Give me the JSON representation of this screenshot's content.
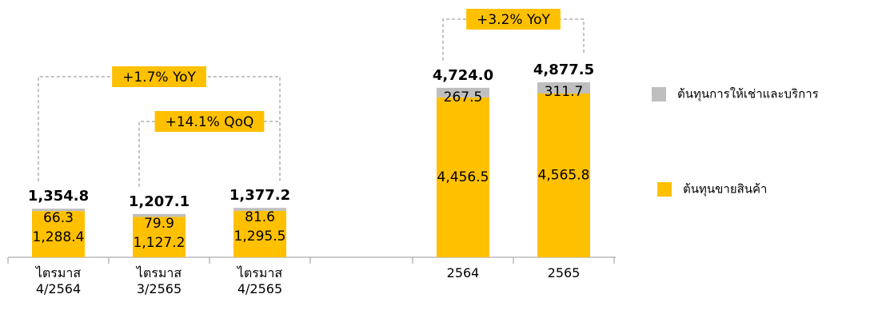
{
  "chart_data": {
    "type": "stacked_bar",
    "categories": [
      "ไตรมาส 4/2564",
      "ไตรมาส 3/2565",
      "ไตรมาส 4/2565",
      null,
      "2564",
      "2565"
    ],
    "series": [
      {
        "name": "ต้นทุนขายสินค้า",
        "color": "#ffc000",
        "values": [
          1288.4,
          1127.2,
          1295.5,
          null,
          4456.5,
          4565.8
        ],
        "value_labels": [
          "1,288.4",
          "1,127.2",
          "1,295.5",
          null,
          "4,456.5",
          "4,565.8"
        ]
      },
      {
        "name": "ต้นทุนการให้เช่าและบริการ",
        "color": "#bfbfbf",
        "values": [
          66.3,
          79.9,
          81.6,
          null,
          267.5,
          311.7
        ],
        "value_labels": [
          "66.3",
          "79.9",
          "81.6",
          null,
          "267.5",
          "311.7"
        ]
      }
    ],
    "totals": [
      1354.8,
      1207.1,
      1377.2,
      null,
      4724.0,
      4877.5
    ],
    "total_labels": [
      "1,354.8",
      "1,207.1",
      "1,377.2",
      null,
      "4,724.0",
      "4,877.5"
    ],
    "annotations": [
      "+1.7% YoY",
      "+14.1% QoQ",
      "+3.2% YoY"
    ]
  }
}
